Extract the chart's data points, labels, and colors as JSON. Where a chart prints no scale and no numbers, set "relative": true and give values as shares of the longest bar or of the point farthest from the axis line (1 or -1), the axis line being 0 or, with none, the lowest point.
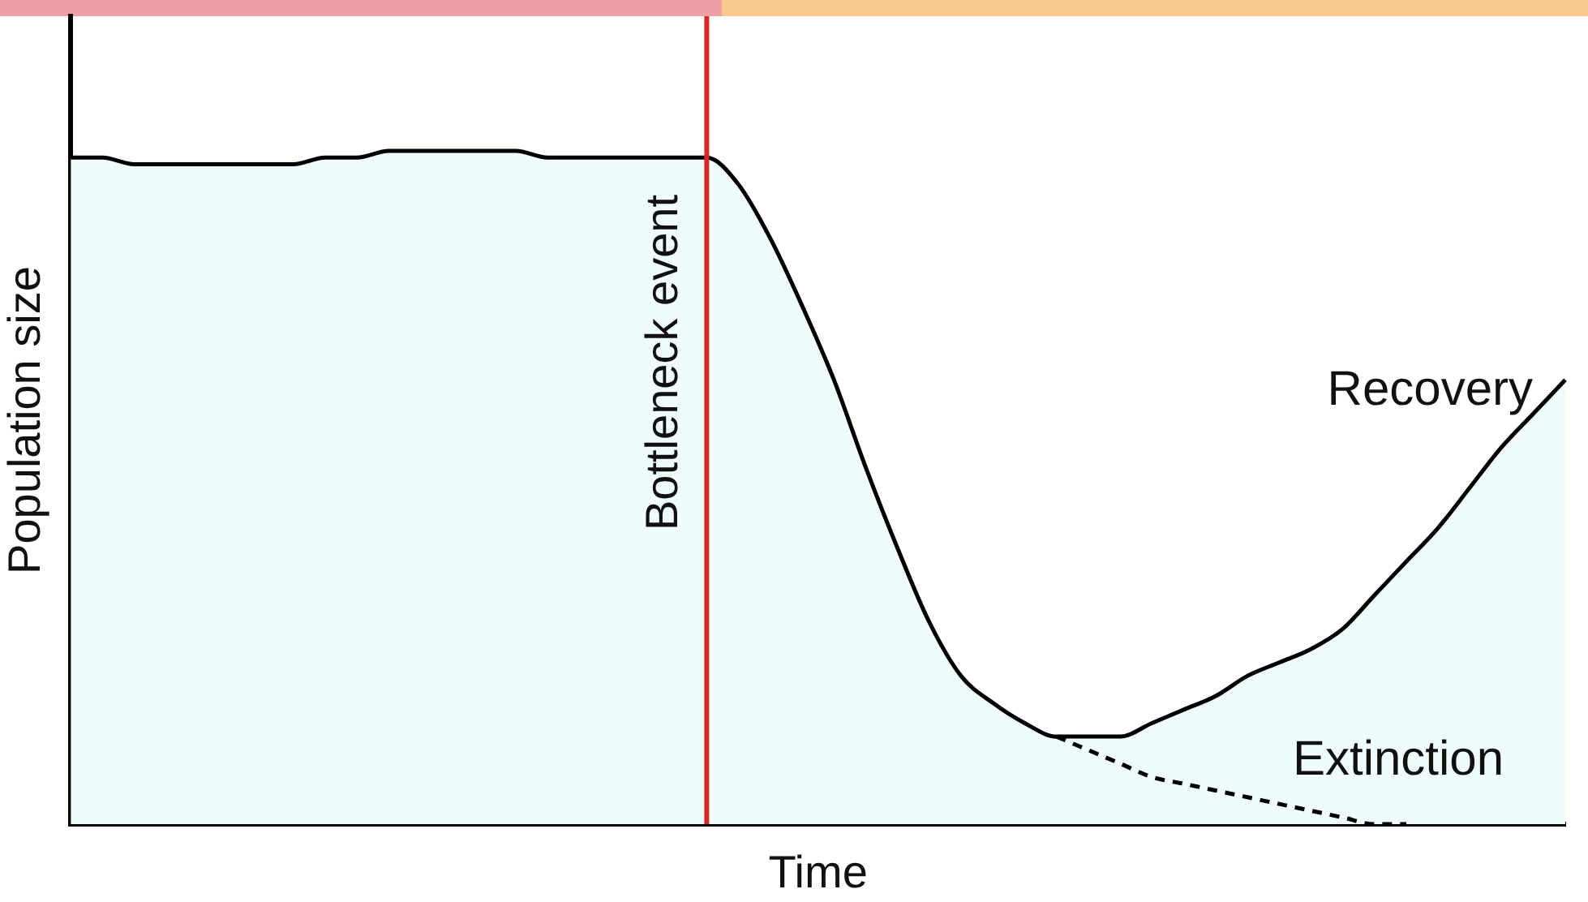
{
  "chart_data": {
    "type": "area",
    "relative": true,
    "xlabel": "Time",
    "ylabel": "Population size",
    "legend": false,
    "grid": false,
    "marker": "none",
    "categories": [
      null,
      null,
      null,
      null,
      null,
      null,
      null,
      null,
      null,
      null,
      null,
      null,
      null,
      null,
      null,
      null,
      null,
      null,
      null,
      null,
      null,
      null,
      null,
      null,
      null,
      null,
      null,
      null,
      null,
      null,
      null,
      null,
      null,
      null,
      null,
      null,
      null,
      null,
      null,
      null,
      null,
      null,
      null,
      null,
      null,
      null,
      null,
      null
    ],
    "series": [
      {
        "name": "Recovery",
        "type": "area",
        "color": "#000000",
        "line_style": "solid",
        "values": [
          0.99,
          0.99,
          0.98,
          0.98,
          0.98,
          0.98,
          0.98,
          0.98,
          0.99,
          0.99,
          1.0,
          1,
          1,
          1,
          1.0,
          0.99,
          0.99,
          0.99,
          0.99,
          0.99,
          0.99,
          0.95,
          0.87,
          0.77,
          0.66,
          0.53,
          0.41,
          0.3,
          0.22,
          0.18,
          0.15,
          0.13,
          0.13,
          0.13,
          0.15,
          0.17,
          0.19,
          0.22,
          0.24,
          0.26,
          0.29,
          0.34,
          0.39,
          0.44,
          0.5,
          0.56,
          0.61,
          0.66
        ]
      },
      {
        "name": "Extinction",
        "type": "line",
        "color": "#000000",
        "line_style": "dashed",
        "values": [
          null,
          null,
          null,
          null,
          null,
          null,
          null,
          null,
          null,
          null,
          null,
          null,
          null,
          null,
          null,
          null,
          null,
          null,
          null,
          null,
          null,
          null,
          null,
          null,
          null,
          null,
          null,
          null,
          null,
          null,
          null,
          0.13,
          0.11,
          0.09,
          0.07,
          0.06,
          0.05,
          0.04,
          0.03,
          0.02,
          0.01,
          0.0,
          0,
          null,
          null,
          null,
          null,
          null
        ]
      }
    ],
    "annotations": [
      "Bottleneck event"
    ]
  }
}
